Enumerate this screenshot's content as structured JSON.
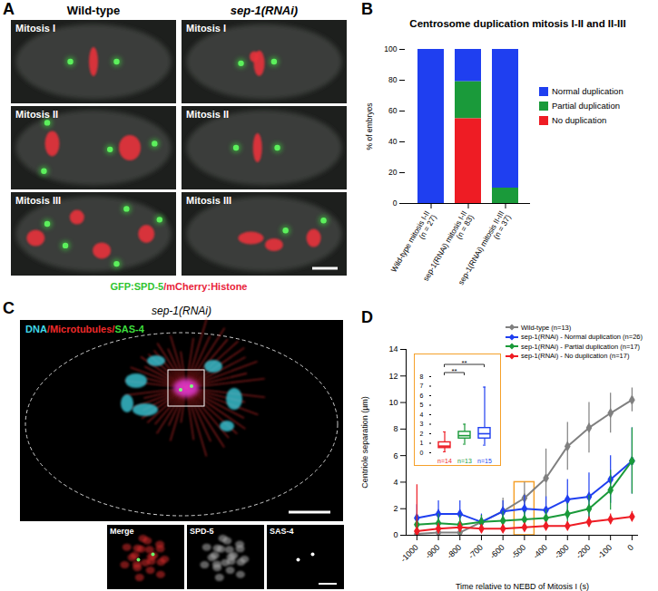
{
  "panel_labels": [
    "A",
    "B",
    "C",
    "D"
  ],
  "panel_A": {
    "columns": [
      "Wild-type",
      "sep-1(RNAi)"
    ],
    "rows": [
      "Mitosis I",
      "Mitosis II",
      "Mitosis III"
    ],
    "caption": [
      {
        "text": "GFP:SPD-5",
        "color": "#2fc42f"
      },
      {
        "text": "/mCherry:Histone",
        "color": "#e8233a"
      }
    ]
  },
  "panel_C": {
    "title": "sep-1(RNAi)",
    "caption": [
      {
        "text": "DNA",
        "color": "#41d9e8"
      },
      {
        "text": "/Microtubules/",
        "color": "#ee2a2a"
      },
      {
        "text": "SAS-4",
        "color": "#3ddc3d"
      }
    ],
    "insets": [
      "Merge",
      "SPD-5",
      "SAS-4"
    ]
  },
  "chart_data": [
    {
      "type": "bar",
      "stacked": true,
      "title": "Centrosome duplication mitosis I-II and II-III",
      "categories": [
        "Wild-type mitosis I-II\n(n = 27)",
        "sep-1(RNAi) mitosis I-II\n(n = 83)",
        "sep-1(RNAi) mitosis II-III\n(n = 37)"
      ],
      "series": [
        {
          "name": "Normal duplication",
          "color": "#1f3ff0",
          "values": [
            100,
            21,
            90
          ]
        },
        {
          "name": "Partial duplication",
          "color": "#1a9a3a",
          "values": [
            0,
            24,
            10
          ]
        },
        {
          "name": "No duplication",
          "color": "#ee1c24",
          "values": [
            0,
            55,
            0
          ]
        }
      ],
      "ylabel": "% of embryos",
      "ylim": [
        0,
        100
      ],
      "yticks": [
        0,
        20,
        40,
        60,
        80,
        100
      ],
      "legend": "right"
    },
    {
      "type": "line",
      "xlabel": "Time relative to NEBD of Mitosis I (s)",
      "ylabel": "Centriole separation (µm)",
      "x": [
        -1000,
        -900,
        -800,
        -700,
        -600,
        -500,
        -400,
        -300,
        -200,
        -100,
        0
      ],
      "xlim": [
        -1050,
        30
      ],
      "xticks": [
        -1000,
        -900,
        -800,
        -700,
        -600,
        -500,
        -400,
        -300,
        -200,
        -100,
        0
      ],
      "ylim": [
        0,
        14
      ],
      "yticks": [
        0,
        2,
        4,
        6,
        8,
        10,
        12,
        14
      ],
      "marker": "diamond",
      "legend": "top-right",
      "highlight": {
        "x": -500,
        "y": [
          0,
          4
        ]
      },
      "series": [
        {
          "name": "Wild-type (n=13)",
          "color": "#808080",
          "values": [
            0.1,
            0.2,
            0.2,
            1.0,
            1.8,
            2.8,
            4.3,
            6.7,
            8.1,
            9.2,
            10.2
          ],
          "errors": [
            0.3,
            0.3,
            0.3,
            0.5,
            1.0,
            1.2,
            2.2,
            1.8,
            1.9,
            1.5,
            0.9
          ]
        },
        {
          "name": "sep-1(RNAi) - Normal duplication (n=26)",
          "color": "#1f3ff0",
          "values": [
            1.3,
            1.6,
            1.6,
            1.0,
            1.8,
            2.0,
            1.9,
            2.7,
            2.9,
            4.2,
            5.6
          ],
          "errors": [
            1.0,
            1.0,
            1.0,
            0.6,
            0.8,
            1.0,
            1.0,
            1.5,
            1.8,
            1.8,
            2.5
          ]
        },
        {
          "name": "sep-1(RNAi) - Partial duplication (n=17)",
          "color": "#1a9a3a",
          "values": [
            0.8,
            0.9,
            0.8,
            1.0,
            1.1,
            1.2,
            1.3,
            1.6,
            2.0,
            3.4,
            5.6
          ],
          "errors": [
            0.7,
            0.7,
            0.7,
            0.5,
            0.7,
            0.6,
            0.6,
            0.8,
            1.0,
            1.5,
            2.5
          ]
        },
        {
          "name": "sep-1(RNAi) - No duplication (n=17)",
          "color": "#ee1c24",
          "values": [
            0.3,
            0.5,
            0.6,
            0.5,
            0.5,
            0.6,
            0.7,
            0.7,
            1.0,
            1.2,
            1.4
          ],
          "errors": [
            3.5,
            0.4,
            0.4,
            0.3,
            0.3,
            0.3,
            0.3,
            0.3,
            0.4,
            0.4,
            0.4
          ]
        }
      ]
    },
    {
      "type": "box",
      "categories": [
        "n=14",
        "n=13",
        "n=15"
      ],
      "colors": [
        "#ee1c24",
        "#1a9a3a",
        "#1f3ff0"
      ],
      "min": [
        0.1,
        0.9,
        0.8
      ],
      "q1": [
        0.5,
        1.5,
        1.5
      ],
      "median": [
        0.7,
        1.8,
        2.0
      ],
      "q3": [
        1.1,
        2.2,
        2.6
      ],
      "max": [
        2.2,
        3.0,
        6.9
      ],
      "ylim": [
        0,
        8
      ],
      "yticks": [
        0,
        1,
        2,
        3,
        4,
        5,
        6,
        7,
        8
      ],
      "annotations": [
        {
          "pair": [
            0,
            1
          ],
          "label": "**"
        },
        {
          "pair": [
            0,
            2
          ],
          "label": "**"
        }
      ]
    }
  ]
}
